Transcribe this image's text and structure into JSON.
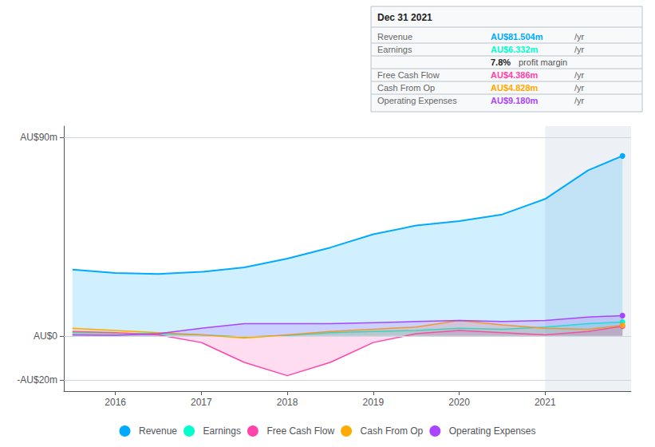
{
  "chart_data": {
    "type": "area",
    "x": [
      2015.5,
      2016.0,
      2016.5,
      2017.0,
      2017.5,
      2018.0,
      2018.5,
      2019.0,
      2019.5,
      2020.0,
      2020.5,
      2021.0,
      2021.5,
      2021.9
    ],
    "series": [
      {
        "name": "Revenue",
        "color": "#00aaff",
        "values": [
          30,
          28.5,
          28,
          29,
          31,
          35,
          40,
          46,
          50,
          52,
          55,
          62,
          75,
          81.5
        ]
      },
      {
        "name": "Earnings",
        "color": "#00ffcc",
        "values": [
          1.5,
          1.2,
          1.0,
          0.5,
          -0.5,
          0.2,
          1.5,
          2.0,
          2.5,
          3.5,
          3.0,
          4.0,
          5.5,
          6.3
        ]
      },
      {
        "name": "Free Cash Flow",
        "color": "#ff44aa",
        "values": [
          2.0,
          1.5,
          0.5,
          -3.0,
          -12.0,
          -18.0,
          -12.0,
          -3.0,
          1.0,
          2.5,
          1.5,
          0.5,
          2.0,
          4.4
        ]
      },
      {
        "name": "Cash From Op",
        "color": "#ffaa00",
        "values": [
          3.5,
          2.5,
          1.5,
          0.5,
          -1.0,
          0.5,
          2.0,
          3.0,
          4.0,
          7.0,
          5.0,
          3.5,
          3.0,
          4.8
        ]
      },
      {
        "name": "Operating Expenses",
        "color": "#aa44ff",
        "values": [
          0.5,
          0.3,
          1.0,
          3.5,
          5.5,
          5.5,
          5.5,
          6.0,
          6.5,
          7.0,
          6.5,
          7.0,
          8.5,
          9.2
        ]
      }
    ],
    "xlim": [
      2015.4,
      2022.0
    ],
    "xticks": [
      2016,
      2017,
      2018,
      2019,
      2020,
      2021
    ],
    "ylim": [
      -25,
      95
    ],
    "yticks": [
      {
        "value": -20,
        "label": "-AU$20m"
      },
      {
        "value": 0,
        "label": "AU$0"
      },
      {
        "value": 90,
        "label": "AU$90m"
      }
    ],
    "grid": true,
    "legend": "bottom",
    "highlight_x": [
      2021.0,
      2022.0
    ],
    "annotations": {
      "title": "Dec 31 2021",
      "rows": [
        {
          "label": "Revenue",
          "value": "AU$81.504m",
          "unit": "/yr",
          "color": "#00aaff"
        },
        {
          "label": "Earnings",
          "value": "AU$6.332m",
          "unit": "/yr",
          "color": "#00ffcc"
        },
        {
          "value": "7.8%",
          "text": "profit margin"
        },
        {
          "label": "Free Cash Flow",
          "value": "AU$4.386m",
          "unit": "/yr",
          "color": "#ff44aa"
        },
        {
          "label": "Cash From Op",
          "value": "AU$4.828m",
          "unit": "/yr",
          "color": "#ffaa00"
        },
        {
          "label": "Operating Expenses",
          "value": "AU$9.180m",
          "unit": "/yr",
          "color": "#aa44ff"
        }
      ]
    }
  }
}
